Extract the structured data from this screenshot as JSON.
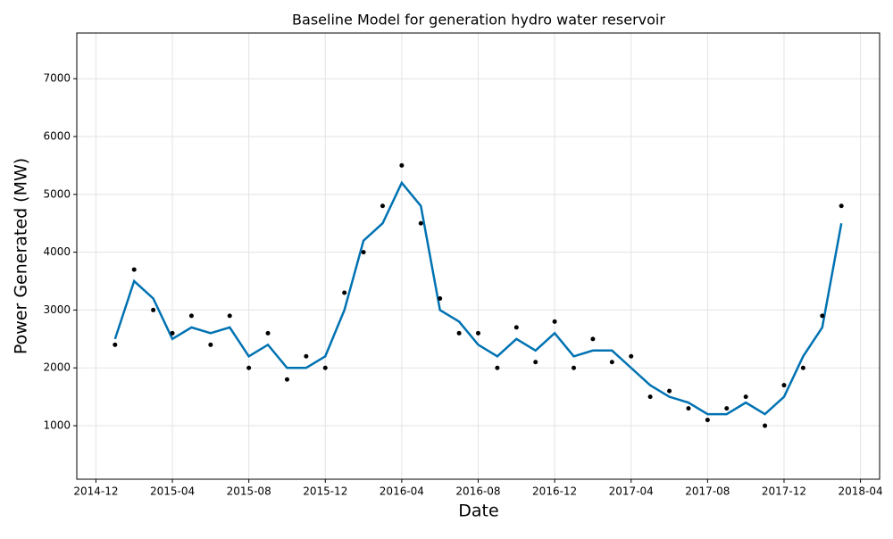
{
  "chart_data": {
    "type": "line",
    "title": "Baseline Model for generation hydro water reservoir",
    "x_label": "Date",
    "y_label": "Power Generated (MW)",
    "x": [
      "2015-01",
      "2015-02",
      "2015-03",
      "2015-04",
      "2015-05",
      "2015-06",
      "2015-07",
      "2015-08",
      "2015-09",
      "2015-10",
      "2015-11",
      "2015-12",
      "2016-01",
      "2016-02",
      "2016-03",
      "2016-04",
      "2016-05",
      "2016-06",
      "2016-07",
      "2016-08",
      "2016-09",
      "2016-10",
      "2016-11",
      "2016-12",
      "2017-01",
      "2017-02",
      "2017-03",
      "2017-04",
      "2017-05",
      "2017-06",
      "2017-07",
      "2017-08",
      "2017-09",
      "2017-10",
      "2017-11",
      "2017-12",
      "2018-01",
      "2018-02",
      "2018-03"
    ],
    "series": [
      {
        "style": "line",
        "color": "#0072B2",
        "values": [
          2500,
          3500,
          3200,
          2500,
          2700,
          2600,
          2700,
          2200,
          2400,
          2000,
          2000,
          2200,
          3000,
          4200,
          4500,
          5200,
          4800,
          3000,
          2800,
          2400,
          2200,
          2500,
          2300,
          2600,
          2200,
          2300,
          2300,
          2000,
          1700,
          1500,
          1400,
          1200,
          1200,
          1400,
          1200,
          1500,
          2200,
          2700,
          4500
        ]
      },
      {
        "style": "points",
        "color": "#000000",
        "values": [
          2400,
          3700,
          3000,
          2600,
          2900,
          2400,
          2900,
          2000,
          2600,
          1800,
          2200,
          2000,
          3300,
          4000,
          4800,
          5500,
          4500,
          3200,
          2600,
          2600,
          2000,
          2700,
          2100,
          2800,
          2000,
          2500,
          2100,
          2200,
          1500,
          1600,
          1300,
          1100,
          1300,
          1500,
          1000,
          1700,
          2000,
          2900,
          4800
        ]
      }
    ],
    "xlim": [
      "2014-11",
      "2018-05"
    ],
    "xticks": [
      "2014-12",
      "2015-04",
      "2015-08",
      "2015-12",
      "2016-04",
      "2016-08",
      "2016-12",
      "2017-04",
      "2017-08",
      "2017-12",
      "2018-04"
    ],
    "ylim": [
      75,
      7790
    ],
    "yticks": [
      1000,
      2000,
      3000,
      4000,
      5000,
      6000,
      7000
    ],
    "grid": true
  }
}
